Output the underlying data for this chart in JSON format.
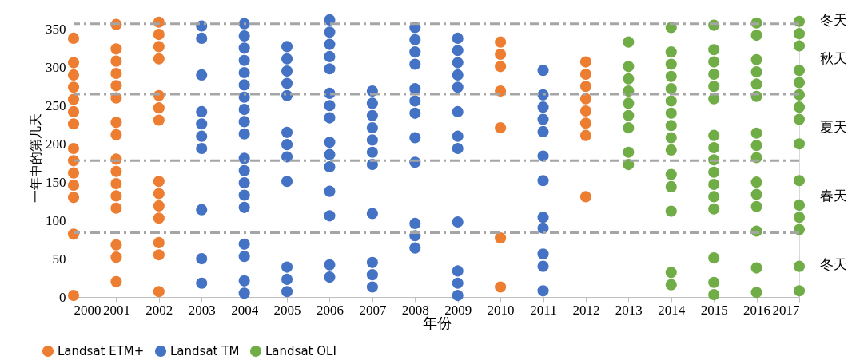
{
  "chart_data": {
    "type": "scatter",
    "xlabel": "年份",
    "ylabel": "一年中的第几天",
    "xlim": [
      2000,
      2017
    ],
    "xticks": [
      2000,
      2001,
      2002,
      2003,
      2004,
      2005,
      2006,
      2007,
      2008,
      2009,
      2010,
      2011,
      2012,
      2013,
      2014,
      2015,
      2016,
      2017
    ],
    "ylim": [
      0,
      365
    ],
    "yticks": [
      0,
      50,
      100,
      150,
      200,
      250,
      300,
      350
    ],
    "grid": false,
    "legend": "bottom left",
    "marker": "circle",
    "series": [
      {
        "name": "Landsat ETM+",
        "color": "#ed7d31",
        "x": [
          2000,
          2000,
          2000,
          2000,
          2000,
          2000,
          2000,
          2000,
          2000,
          2000,
          2000,
          2000,
          2000,
          2000,
          2001,
          2001,
          2001,
          2001,
          2001,
          2001,
          2001,
          2001,
          2001,
          2001,
          2001,
          2001,
          2001,
          2001,
          2001,
          2001,
          2002,
          2002,
          2002,
          2002,
          2002,
          2002,
          2002,
          2002,
          2002,
          2002,
          2002,
          2002,
          2002,
          2002,
          2010,
          2010,
          2010,
          2010,
          2010,
          2010,
          2010,
          2012,
          2012,
          2012,
          2012,
          2012,
          2012,
          2012,
          2012
        ],
        "values": [
          338,
          306,
          290,
          274,
          258,
          242,
          226,
          194,
          178,
          162,
          146,
          130,
          82,
          2,
          356,
          324,
          308,
          292,
          276,
          260,
          228,
          212,
          180,
          164,
          148,
          132,
          116,
          68,
          52,
          20,
          359,
          343,
          327,
          311,
          263,
          247,
          231,
          151,
          135,
          119,
          103,
          71,
          55,
          7,
          333,
          317,
          301,
          269,
          221,
          77,
          13,
          307,
          291,
          275,
          259,
          243,
          227,
          211,
          131
        ]
      },
      {
        "name": "Landsat TM",
        "color": "#4472c4",
        "x": [
          2003,
          2003,
          2003,
          2003,
          2003,
          2003,
          2003,
          2003,
          2003,
          2003,
          2004,
          2004,
          2004,
          2004,
          2004,
          2004,
          2004,
          2004,
          2004,
          2004,
          2004,
          2004,
          2004,
          2004,
          2004,
          2004,
          2004,
          2004,
          2004,
          2005,
          2005,
          2005,
          2005,
          2005,
          2005,
          2005,
          2005,
          2005,
          2005,
          2005,
          2005,
          2006,
          2006,
          2006,
          2006,
          2006,
          2006,
          2006,
          2006,
          2006,
          2006,
          2006,
          2006,
          2006,
          2006,
          2006,
          2007,
          2007,
          2007,
          2007,
          2007,
          2007,
          2007,
          2007,
          2007,
          2007,
          2007,
          2008,
          2008,
          2008,
          2008,
          2008,
          2008,
          2008,
          2008,
          2008,
          2008,
          2008,
          2008,
          2009,
          2009,
          2009,
          2009,
          2009,
          2009,
          2009,
          2009,
          2009,
          2009,
          2009,
          2009,
          2011,
          2011,
          2011,
          2011,
          2011,
          2011,
          2011,
          2011,
          2011,
          2011,
          2011,
          2011
        ],
        "values": [
          354,
          338,
          290,
          242,
          226,
          210,
          194,
          114,
          50,
          18,
          357,
          341,
          325,
          309,
          293,
          277,
          261,
          245,
          229,
          213,
          181,
          165,
          149,
          133,
          117,
          69,
          53,
          21,
          5,
          327,
          311,
          295,
          279,
          263,
          215,
          199,
          183,
          151,
          39,
          23,
          7,
          362,
          346,
          330,
          314,
          298,
          266,
          250,
          234,
          202,
          186,
          170,
          138,
          106,
          42,
          26,
          269,
          253,
          237,
          221,
          205,
          189,
          173,
          109,
          45,
          29,
          13,
          352,
          336,
          320,
          304,
          272,
          256,
          240,
          208,
          176,
          96,
          80,
          64,
          338,
          322,
          306,
          290,
          274,
          242,
          210,
          194,
          98,
          34,
          18,
          2,
          296,
          264,
          248,
          232,
          216,
          184,
          152,
          104,
          90,
          56,
          40,
          8
        ]
      },
      {
        "name": "Landsat OLI",
        "color": "#70ad47",
        "x": [
          2013,
          2013,
          2013,
          2013,
          2013,
          2013,
          2013,
          2013,
          2013,
          2014,
          2014,
          2014,
          2014,
          2014,
          2014,
          2014,
          2014,
          2014,
          2014,
          2014,
          2014,
          2014,
          2014,
          2014,
          2015,
          2015,
          2015,
          2015,
          2015,
          2015,
          2015,
          2015,
          2015,
          2015,
          2015,
          2015,
          2015,
          2015,
          2015,
          2015,
          2016,
          2016,
          2016,
          2016,
          2016,
          2016,
          2016,
          2016,
          2016,
          2016,
          2016,
          2016,
          2016,
          2016,
          2016,
          2017,
          2017,
          2017,
          2017,
          2017,
          2017,
          2017,
          2017,
          2017,
          2017,
          2017,
          2017,
          2017,
          2017,
          2017
        ],
        "values": [
          333,
          301,
          285,
          269,
          253,
          237,
          221,
          189,
          173,
          352,
          320,
          304,
          288,
          272,
          256,
          240,
          224,
          208,
          192,
          160,
          144,
          112,
          32,
          16,
          355,
          323,
          307,
          291,
          275,
          259,
          211,
          195,
          179,
          163,
          147,
          131,
          115,
          51,
          19,
          3,
          358,
          342,
          310,
          294,
          278,
          262,
          214,
          198,
          182,
          150,
          134,
          118,
          86,
          38,
          6,
          360,
          344,
          328,
          296,
          280,
          264,
          248,
          232,
          200,
          152,
          120,
          104,
          88,
          40,
          8
        ]
      }
    ],
    "ref_lines": [
      {
        "axis": "y",
        "value": 357,
        "color": "#a5a5a5",
        "line_style": "dashed"
      },
      {
        "axis": "y",
        "value": 265,
        "color": "#a5a5a5",
        "line_style": "dashed"
      },
      {
        "axis": "y",
        "value": 178,
        "color": "#a5a5a5",
        "line_style": "dashed"
      },
      {
        "axis": "y",
        "value": 84,
        "color": "#a5a5a5",
        "line_style": "dashed"
      }
    ],
    "annotations": [
      "冬天",
      "秋天",
      "夏天",
      "春天",
      "冬天"
    ]
  }
}
